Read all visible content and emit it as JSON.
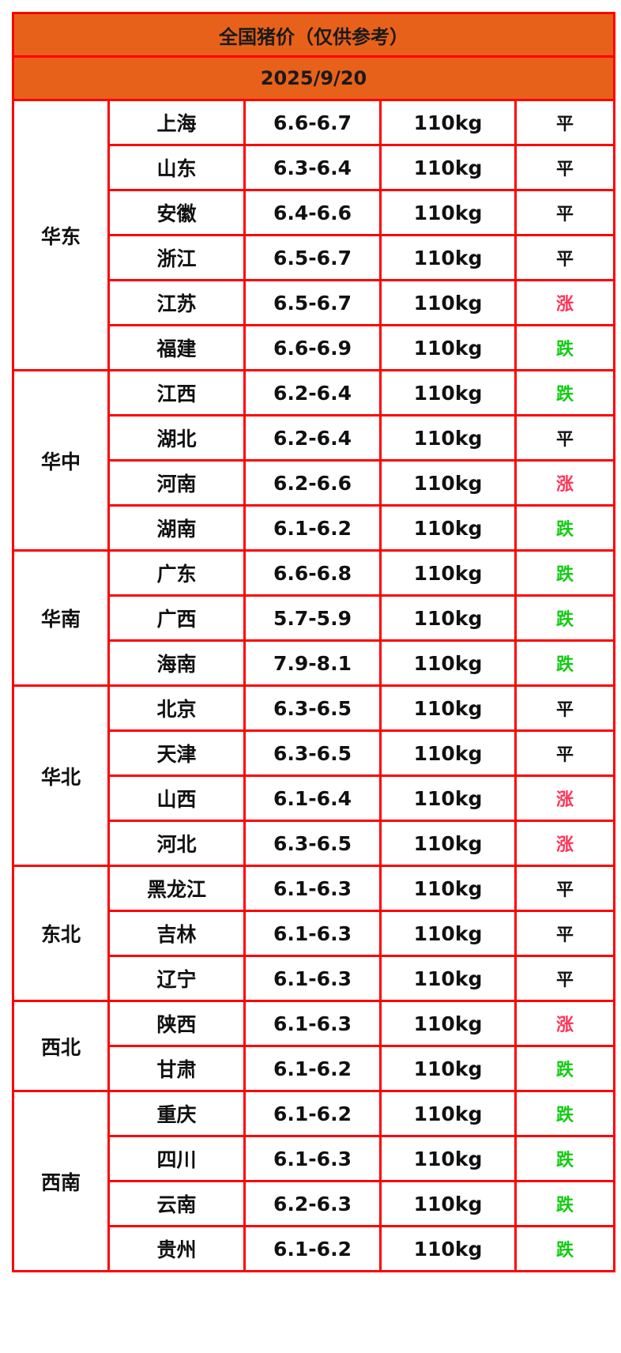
{
  "title": "全国猪价（仅供参考）",
  "date": "2025/9/20",
  "colors": {
    "header_bg": "#e8611a",
    "border": "#ff0000",
    "up": "#ff3355",
    "down": "#11cc11",
    "flat": "#111111"
  },
  "regions": [
    {
      "name": "华东",
      "rows": [
        {
          "province": "上海",
          "price": "6.6-6.7",
          "weight": "110kg",
          "trend": "平"
        },
        {
          "province": "山东",
          "price": "6.3-6.4",
          "weight": "110kg",
          "trend": "平"
        },
        {
          "province": "安徽",
          "price": "6.4-6.6",
          "weight": "110kg",
          "trend": "平"
        },
        {
          "province": "浙江",
          "price": "6.5-6.7",
          "weight": "110kg",
          "trend": "平"
        },
        {
          "province": "江苏",
          "price": "6.5-6.7",
          "weight": "110kg",
          "trend": "涨"
        },
        {
          "province": "福建",
          "price": "6.6-6.9",
          "weight": "110kg",
          "trend": "跌"
        }
      ]
    },
    {
      "name": "华中",
      "rows": [
        {
          "province": "江西",
          "price": "6.2-6.4",
          "weight": "110kg",
          "trend": "跌"
        },
        {
          "province": "湖北",
          "price": "6.2-6.4",
          "weight": "110kg",
          "trend": "平"
        },
        {
          "province": "河南",
          "price": "6.2-6.6",
          "weight": "110kg",
          "trend": "涨"
        },
        {
          "province": "湖南",
          "price": "6.1-6.2",
          "weight": "110kg",
          "trend": "跌"
        }
      ]
    },
    {
      "name": "华南",
      "rows": [
        {
          "province": "广东",
          "price": "6.6-6.8",
          "weight": "110kg",
          "trend": "跌"
        },
        {
          "province": "广西",
          "price": "5.7-5.9",
          "weight": "110kg",
          "trend": "跌"
        },
        {
          "province": "海南",
          "price": "7.9-8.1",
          "weight": "110kg",
          "trend": "跌"
        }
      ]
    },
    {
      "name": "华北",
      "rows": [
        {
          "province": "北京",
          "price": "6.3-6.5",
          "weight": "110kg",
          "trend": "平"
        },
        {
          "province": "天津",
          "price": "6.3-6.5",
          "weight": "110kg",
          "trend": "平"
        },
        {
          "province": "山西",
          "price": "6.1-6.4",
          "weight": "110kg",
          "trend": "涨"
        },
        {
          "province": "河北",
          "price": "6.3-6.5",
          "weight": "110kg",
          "trend": "涨"
        }
      ]
    },
    {
      "name": "东北",
      "rows": [
        {
          "province": "黑龙江",
          "price": "6.1-6.3",
          "weight": "110kg",
          "trend": "平"
        },
        {
          "province": "吉林",
          "price": "6.1-6.3",
          "weight": "110kg",
          "trend": "平"
        },
        {
          "province": "辽宁",
          "price": "6.1-6.3",
          "weight": "110kg",
          "trend": "平"
        }
      ]
    },
    {
      "name": "西北",
      "rows": [
        {
          "province": "陕西",
          "price": "6.1-6.3",
          "weight": "110kg",
          "trend": "涨"
        },
        {
          "province": "甘肃",
          "price": "6.1-6.2",
          "weight": "110kg",
          "trend": "跌"
        }
      ]
    },
    {
      "name": "西南",
      "rows": [
        {
          "province": "重庆",
          "price": "6.1-6.2",
          "weight": "110kg",
          "trend": "跌"
        },
        {
          "province": "四川",
          "price": "6.1-6.3",
          "weight": "110kg",
          "trend": "跌"
        },
        {
          "province": "云南",
          "price": "6.2-6.3",
          "weight": "110kg",
          "trend": "跌"
        },
        {
          "province": "贵州",
          "price": "6.1-6.2",
          "weight": "110kg",
          "trend": "跌"
        }
      ]
    }
  ]
}
